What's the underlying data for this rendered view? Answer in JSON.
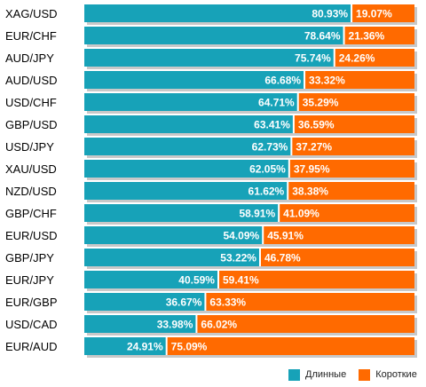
{
  "chart_data": {
    "type": "bar",
    "orientation": "horizontal",
    "stacked": true,
    "categories": [
      "XAG/USD",
      "EUR/CHF",
      "AUD/JPY",
      "AUD/USD",
      "USD/CHF",
      "GBP/USD",
      "USD/JPY",
      "XAU/USD",
      "NZD/USD",
      "GBP/CHF",
      "EUR/USD",
      "GBP/JPY",
      "EUR/JPY",
      "EUR/GBP",
      "USD/CAD",
      "EUR/AUD"
    ],
    "series": [
      {
        "name": "Длинные",
        "color": "#17a2b8",
        "values": [
          80.93,
          78.64,
          75.74,
          66.68,
          64.71,
          63.41,
          62.73,
          62.05,
          61.62,
          58.91,
          54.09,
          53.22,
          40.59,
          36.67,
          33.98,
          24.91
        ]
      },
      {
        "name": "Короткие",
        "color": "#ff6a00",
        "values": [
          19.07,
          21.36,
          24.26,
          33.32,
          35.29,
          36.59,
          37.27,
          37.95,
          38.38,
          41.09,
          45.91,
          46.78,
          59.41,
          63.33,
          66.02,
          75.09
        ]
      }
    ],
    "value_suffix": "%",
    "xlim": [
      0,
      100
    ],
    "legend": "bottom-right"
  }
}
